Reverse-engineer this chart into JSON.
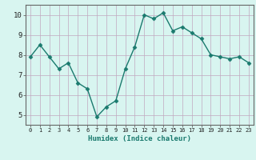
{
  "x": [
    0,
    1,
    2,
    3,
    4,
    5,
    6,
    7,
    8,
    9,
    10,
    11,
    12,
    13,
    14,
    15,
    16,
    17,
    18,
    19,
    20,
    21,
    22,
    23
  ],
  "y": [
    7.9,
    8.5,
    7.9,
    7.3,
    7.6,
    6.6,
    6.3,
    4.9,
    5.4,
    5.7,
    7.3,
    8.4,
    10.0,
    9.8,
    10.1,
    9.2,
    9.4,
    9.1,
    8.8,
    8.0,
    7.9,
    7.8,
    7.9,
    7.6
  ],
  "xlabel": "Humidex (Indice chaleur)",
  "ylim": [
    4.5,
    10.5
  ],
  "xlim": [
    -0.5,
    23.5
  ],
  "yticks": [
    5,
    6,
    7,
    8,
    9,
    10
  ],
  "xticks": [
    0,
    1,
    2,
    3,
    4,
    5,
    6,
    7,
    8,
    9,
    10,
    11,
    12,
    13,
    14,
    15,
    16,
    17,
    18,
    19,
    20,
    21,
    22,
    23
  ],
  "line_color": "#1a7a6e",
  "marker": "D",
  "marker_size": 2.5,
  "bg_color": "#d8f5f0",
  "grid_color": "#c0a8c0",
  "xlabel_color": "#1a7a6e",
  "xlabel_fontsize": 6.5,
  "tick_fontsize_x": 5.0,
  "tick_fontsize_y": 6.5,
  "linewidth": 1.0
}
